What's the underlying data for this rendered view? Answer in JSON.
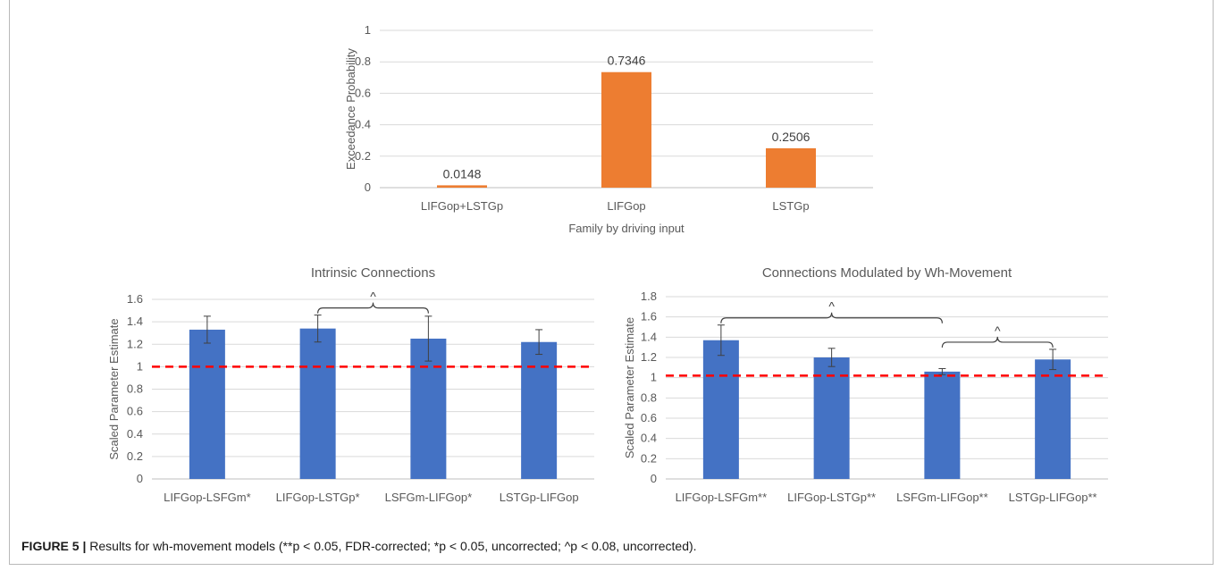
{
  "caption": {
    "label": "FIGURE 5 |",
    "text": "Results for wh-movement models (**p < 0.05, FDR-corrected; *p < 0.05, uncorrected; ^p < 0.08, uncorrected)."
  },
  "colors": {
    "orange": "#ED7D31",
    "blue": "#4472C4",
    "reference_line": "#FF0000",
    "grid": "#d9d9d9"
  },
  "chart_data": [
    {
      "id": "top",
      "type": "bar",
      "title": "",
      "xlabel": "Family by driving input",
      "ylabel": "Exceedance Probability",
      "ylim": [
        0,
        1
      ],
      "yticks": [
        0,
        0.2,
        0.4,
        0.6,
        0.8,
        1
      ],
      "ytick_labels": [
        "0",
        "0.2",
        "0.4",
        "0.6",
        "0.8",
        "1"
      ],
      "categories": [
        "LIFGop+LSTGp",
        "LIFGop",
        "LSTGp"
      ],
      "values": [
        0.0148,
        0.7346,
        0.2506
      ],
      "data_labels": [
        "0.0148",
        "0.7346",
        "0.2506"
      ],
      "color": "orange",
      "grid": true
    },
    {
      "id": "intrinsic",
      "type": "bar",
      "title": "Intrinsic Connections",
      "xlabel": "",
      "ylabel": "Scaled Parameter Estimate",
      "ylim": [
        0,
        1.6
      ],
      "yticks": [
        0,
        0.2,
        0.4,
        0.6,
        0.8,
        1,
        1.2,
        1.4,
        1.6
      ],
      "ytick_labels": [
        "0",
        "0.2",
        "0.4",
        "0.6",
        "0.8",
        "1",
        "1.2",
        "1.4",
        "1.6"
      ],
      "categories": [
        "LIFGop-LSFGm*",
        "LIFGop-LSTGp*",
        "LSFGm-LIFGop*",
        "LSTGp-LIFGop"
      ],
      "values": [
        1.33,
        1.34,
        1.25,
        1.22
      ],
      "errors": [
        0.12,
        0.12,
        0.2,
        0.11
      ],
      "reference_line": 1,
      "brackets": [
        {
          "from": 1,
          "to": 2,
          "label": "^"
        }
      ],
      "color": "blue",
      "grid": true
    },
    {
      "id": "modulated",
      "type": "bar",
      "title": "Connections Modulated by Wh-Movement",
      "xlabel": "",
      "ylabel": "Scaled Parameter Estimate",
      "ylim": [
        0,
        1.8
      ],
      "yticks": [
        0,
        0.2,
        0.4,
        0.6,
        0.8,
        1,
        1.2,
        1.4,
        1.6,
        1.8
      ],
      "ytick_labels": [
        "0",
        "0.2",
        "0.4",
        "0.6",
        "0.8",
        "1",
        "1.2",
        "1.4",
        "1.6",
        "1.8"
      ],
      "categories": [
        "LIFGop-LSFGm**",
        "LIFGop-LSTGp**",
        "LSFGm-LIFGop**",
        "LSTGp-LIFGop**"
      ],
      "values": [
        1.37,
        1.2,
        1.06,
        1.18
      ],
      "errors": [
        0.15,
        0.09,
        0.03,
        0.1
      ],
      "reference_line": 1.02,
      "brackets": [
        {
          "from": 0,
          "to": 2,
          "label": "^"
        },
        {
          "from": 2,
          "to": 3,
          "label": "^"
        }
      ],
      "color": "blue",
      "grid": true
    }
  ]
}
